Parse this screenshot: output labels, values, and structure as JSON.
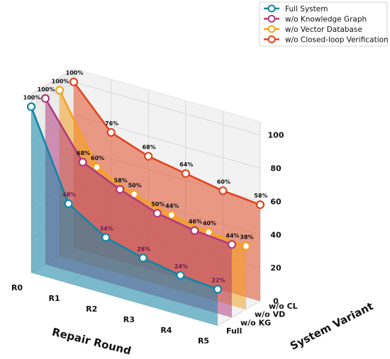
{
  "chart_data": {
    "type": "area",
    "projection": "3d",
    "title": "",
    "xlabel": "Repair Round",
    "ylabel": "System Variant",
    "zlabel": "",
    "categories": [
      "R0",
      "R1",
      "R2",
      "R3",
      "R4",
      "R5"
    ],
    "variants": [
      "Full",
      "w/o KG",
      "w/o VD",
      "w/o CL"
    ],
    "zlim": [
      0,
      108
    ],
    "z_ticks": [
      "0",
      "20",
      "40",
      "60",
      "80",
      "100"
    ],
    "grid": true,
    "legend_position": "top-right",
    "series": [
      {
        "name": "Full System",
        "variant": "Full",
        "color": "#0e86a8",
        "values": [
          100,
          48,
          34,
          28,
          24,
          22
        ],
        "labels": [
          "100%",
          "48%",
          "34%",
          "28%",
          "24%",
          "22%"
        ]
      },
      {
        "name": "w/o Knowledge Graph",
        "variant": "w/o KG",
        "color": "#b23a7c",
        "values": [
          100,
          68,
          58,
          50,
          46,
          44
        ],
        "labels": [
          "100%",
          "68%",
          "58%",
          "50%",
          "46%",
          "44%"
        ]
      },
      {
        "name": "w/o Vector Database",
        "variant": "w/o VD",
        "color": "#f5a21b",
        "values": [
          100,
          60,
          50,
          44,
          40,
          38
        ],
        "labels": [
          "100%",
          "60%",
          "50%",
          "44%",
          "40%",
          "38%"
        ]
      },
      {
        "name": "w/o Closed-loop Verification",
        "variant": "w/o CL",
        "color": "#e0451f",
        "values": [
          100,
          76,
          68,
          64,
          60,
          58
        ],
        "labels": [
          "100%",
          "76%",
          "68%",
          "64%",
          "60%",
          "58%"
        ]
      }
    ]
  }
}
